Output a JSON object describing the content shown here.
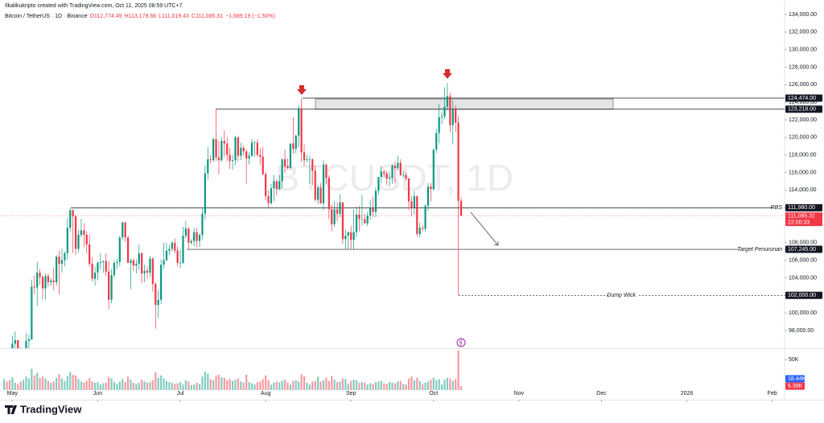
{
  "chart_data": {
    "type": "candlestick",
    "credit": "Ilkalikukripto created with TradingView.com, Oct 11, 2025 08:59 UTC+7",
    "legend": {
      "symbol": "Bitcoin / TetherUS · 1D · Binance",
      "open": "O112,774.49",
      "high": "H113,178.66",
      "low": "L111,019.43",
      "close": "C111,085.31",
      "change": "−1,689.19 (−1.50%)"
    },
    "watermark": "BTCUSDT, 1D",
    "brand": "TradingView",
    "up_color": "#089981",
    "down_color": "#f23645",
    "xlim": [
      -1.5,
      283.5
    ],
    "xticks": [
      {
        "value": 3,
        "label": "May"
      },
      {
        "value": 34,
        "label": "Jun"
      },
      {
        "value": 64,
        "label": "Jul"
      },
      {
        "value": 95,
        "label": "Aug"
      },
      {
        "value": 126,
        "label": "Sep"
      },
      {
        "value": 156,
        "label": "Oct"
      },
      {
        "value": 187,
        "label": "Nov"
      },
      {
        "value": 217,
        "label": "Dec"
      },
      {
        "value": 248,
        "label": "2026"
      },
      {
        "value": 279,
        "label": "Feb"
      }
    ],
    "ylim": [
      95980,
      134920
    ],
    "yticks": [
      {
        "value": 98000,
        "label": "98,000.00"
      },
      {
        "value": 100000,
        "label": "100,000.00"
      },
      {
        "value": 102000,
        "label": "102,000.00"
      },
      {
        "value": 104000,
        "label": "104,000.00"
      },
      {
        "value": 106000,
        "label": "106,000.00"
      },
      {
        "value": 108000,
        "label": "108,000.00"
      },
      {
        "value": 114000,
        "label": "114,000.00"
      },
      {
        "value": 116000,
        "label": "116,000.00"
      },
      {
        "value": 118000,
        "label": "118,000.00"
      },
      {
        "value": 120000,
        "label": "120,000.00"
      },
      {
        "value": 122000,
        "label": "122,000.00"
      },
      {
        "value": 124000,
        "label": "124,000.00"
      },
      {
        "value": 126000,
        "label": "126,000.00"
      },
      {
        "value": 128000,
        "label": "128,000.00"
      },
      {
        "value": 130000,
        "label": "130,000.00"
      },
      {
        "value": 132000,
        "label": "132,000.00"
      },
      {
        "value": 134000,
        "label": "134,000.00"
      }
    ],
    "levels": [
      {
        "value": 124474,
        "label": "124,474.00"
      },
      {
        "value": 123218,
        "label": "123,218.00"
      },
      {
        "value": 111980,
        "label": "111,980.00",
        "text": "RBS"
      },
      {
        "value": 107245,
        "label": "107,245.00",
        "text": "Target Penurunan"
      },
      {
        "value": 102000,
        "label": "102,000.00",
        "text": "Dump Wick"
      }
    ],
    "last_price": {
      "value": 111085.31,
      "label": "111,085.31",
      "countdown": "22:00:33"
    },
    "ohlc": [
      [
        94700,
        95600,
        93800,
        95000
      ],
      [
        95000,
        95500,
        93900,
        94300
      ],
      [
        94300,
        95200,
        93400,
        94200
      ],
      [
        94200,
        97400,
        93900,
        96500
      ],
      [
        96500,
        97900,
        96000,
        96900
      ],
      [
        96900,
        96900,
        95700,
        95900
      ],
      [
        95900,
        96100,
        93600,
        94300
      ],
      [
        94300,
        95200,
        93400,
        94700
      ],
      [
        94700,
        97700,
        94500,
        96800
      ],
      [
        96800,
        97500,
        95900,
        97000
      ],
      [
        97000,
        103800,
        96900,
        103000
      ],
      [
        103000,
        104300,
        102100,
        102900
      ],
      [
        102900,
        105800,
        100800,
        104600
      ],
      [
        104600,
        105000,
        103200,
        104100
      ],
      [
        104100,
        104300,
        101500,
        102800
      ],
      [
        102800,
        104500,
        101500,
        104200
      ],
      [
        104200,
        104500,
        103000,
        103500
      ],
      [
        103500,
        104000,
        103100,
        103700
      ],
      [
        103700,
        105100,
        102600,
        103500
      ],
      [
        103500,
        106600,
        103100,
        106400
      ],
      [
        106400,
        107100,
        102100,
        105600
      ],
      [
        105600,
        107300,
        104600,
        106000
      ],
      [
        106000,
        107000,
        105300,
        106800
      ],
      [
        106800,
        110800,
        106100,
        109700
      ],
      [
        109700,
        111900,
        109300,
        111700
      ],
      [
        111700,
        111800,
        106800,
        111000
      ],
      [
        111000,
        111200,
        106600,
        107300
      ],
      [
        107300,
        109500,
        106900,
        108900
      ],
      [
        108900,
        110700,
        108600,
        109400
      ],
      [
        109400,
        110200,
        107500,
        108900
      ],
      [
        108900,
        109300,
        106800,
        107800
      ],
      [
        107800,
        108900,
        105300,
        105600
      ],
      [
        105600,
        106300,
        103600,
        103900
      ],
      [
        103900,
        105300,
        103100,
        104600
      ],
      [
        104600,
        105900,
        103700,
        105700
      ],
      [
        105700,
        106800,
        104900,
        105800
      ],
      [
        105800,
        106000,
        104600,
        105900
      ],
      [
        105900,
        106800,
        104200,
        104700
      ],
      [
        104700,
        105900,
        100400,
        101500
      ],
      [
        101500,
        105000,
        101100,
        104300
      ],
      [
        104300,
        106000,
        104000,
        105700
      ],
      [
        105700,
        106200,
        105000,
        105800
      ],
      [
        105800,
        108800,
        105300,
        108600
      ],
      [
        108600,
        110400,
        108300,
        110300
      ],
      [
        110300,
        110400,
        108100,
        108600
      ],
      [
        108600,
        108800,
        105700,
        105700
      ],
      [
        105700,
        106200,
        102700,
        106000
      ],
      [
        106000,
        106200,
        104800,
        105400
      ],
      [
        105400,
        106100,
        104500,
        105600
      ],
      [
        105600,
        107800,
        104900,
        106800
      ],
      [
        106800,
        106900,
        103400,
        104500
      ],
      [
        104500,
        105500,
        103500,
        104800
      ],
      [
        104800,
        105300,
        103900,
        104600
      ],
      [
        104600,
        106500,
        104100,
        106200
      ],
      [
        106200,
        106300,
        102400,
        103300
      ],
      [
        103300,
        103500,
        98200,
        100900
      ],
      [
        100900,
        102600,
        99400,
        101500
      ],
      [
        101500,
        106100,
        101000,
        105500
      ],
      [
        105500,
        108000,
        105000,
        106000
      ],
      [
        106000,
        108000,
        105900,
        107100
      ],
      [
        107100,
        107800,
        106600,
        107300
      ],
      [
        107300,
        108200,
        107000,
        108000
      ],
      [
        108000,
        108500,
        106800,
        107100
      ],
      [
        107100,
        107600,
        105300,
        105700
      ],
      [
        105700,
        107200,
        105100,
        105700
      ],
      [
        105700,
        109800,
        105600,
        108800
      ],
      [
        108800,
        110500,
        108500,
        109600
      ],
      [
        109600,
        109800,
        107300,
        108000
      ],
      [
        108000,
        108400,
        107800,
        108200
      ],
      [
        108200,
        109700,
        107600,
        109200
      ],
      [
        109200,
        109700,
        107500,
        108200
      ],
      [
        108200,
        109000,
        107500,
        108900
      ],
      [
        108900,
        111900,
        108300,
        111300
      ],
      [
        111300,
        116800,
        110600,
        115900
      ],
      [
        115900,
        118900,
        115200,
        117500
      ],
      [
        117500,
        118000,
        117000,
        117400
      ],
      [
        117400,
        120000,
        117200,
        119800
      ],
      [
        119800,
        123218,
        117300,
        117700
      ],
      [
        117700,
        119600,
        115800,
        117400
      ],
      [
        117400,
        120000,
        117200,
        119600
      ],
      [
        119600,
        120800,
        117800,
        119300
      ],
      [
        119300,
        120000,
        117300,
        118000
      ],
      [
        118000,
        118800,
        116400,
        117300
      ],
      [
        117300,
        118000,
        116300,
        117400
      ],
      [
        117400,
        120200,
        116800,
        120000
      ],
      [
        120000,
        120100,
        117300,
        117900
      ],
      [
        117900,
        119400,
        117400,
        118800
      ],
      [
        118800,
        119100,
        117900,
        118400
      ],
      [
        118400,
        118600,
        114700,
        117600
      ],
      [
        117600,
        118300,
        116900,
        117900
      ],
      [
        117900,
        119800,
        117800,
        119400
      ],
      [
        119400,
        119600,
        117800,
        119400
      ],
      [
        119400,
        119800,
        117800,
        118000
      ],
      [
        118000,
        118800,
        116900,
        117800
      ],
      [
        117800,
        118900,
        115700,
        115800
      ],
      [
        115800,
        116100,
        112800,
        113300
      ],
      [
        113300,
        114000,
        112000,
        112500
      ],
      [
        112500,
        114700,
        112300,
        114200
      ],
      [
        114200,
        115700,
        112700,
        115000
      ],
      [
        115000,
        115200,
        113400,
        114100
      ],
      [
        114100,
        115700,
        114000,
        115000
      ],
      [
        115000,
        117600,
        114200,
        117500
      ],
      [
        117500,
        118600,
        115900,
        116700
      ],
      [
        116700,
        117600,
        116300,
        116500
      ],
      [
        116500,
        119300,
        116300,
        119300
      ],
      [
        119300,
        122300,
        118100,
        118700
      ],
      [
        118700,
        120300,
        118200,
        120200
      ],
      [
        120200,
        123700,
        118900,
        123300
      ],
      [
        123300,
        124474,
        117200,
        118300
      ],
      [
        118300,
        119200,
        116800,
        117400
      ],
      [
        117400,
        118000,
        117200,
        117500
      ],
      [
        117500,
        117900,
        114700,
        117500
      ],
      [
        117500,
        117600,
        114600,
        116200
      ],
      [
        116200,
        116800,
        112700,
        112900
      ],
      [
        112900,
        114600,
        112400,
        114300
      ],
      [
        114300,
        114800,
        112400,
        112500
      ],
      [
        112500,
        117400,
        111700,
        116900
      ],
      [
        116900,
        117000,
        114700,
        115400
      ],
      [
        115400,
        115700,
        110700,
        111800
      ],
      [
        111800,
        112400,
        109300,
        110100
      ],
      [
        110100,
        112700,
        109800,
        111800
      ],
      [
        111800,
        112600,
        110400,
        111300
      ],
      [
        111300,
        113500,
        110900,
        112600
      ],
      [
        112600,
        112600,
        107900,
        108400
      ],
      [
        108400,
        109500,
        107300,
        108800
      ],
      [
        108800,
        109300,
        107300,
        109200
      ],
      [
        109200,
        109900,
        107300,
        108300
      ],
      [
        108300,
        111800,
        107300,
        109200
      ],
      [
        109200,
        112100,
        108600,
        111200
      ],
      [
        111200,
        112200,
        109300,
        110700
      ],
      [
        110700,
        113400,
        110000,
        110700
      ],
      [
        110700,
        111300,
        110200,
        110200
      ],
      [
        110200,
        111500,
        109900,
        111100
      ],
      [
        111100,
        112900,
        110600,
        112000
      ],
      [
        112000,
        113300,
        110900,
        111500
      ],
      [
        111500,
        114300,
        110900,
        113900
      ],
      [
        113900,
        115500,
        113500,
        115500
      ],
      [
        115500,
        116700,
        114800,
        116100
      ],
      [
        116100,
        116300,
        115500,
        115900
      ],
      [
        115900,
        116200,
        114600,
        115300
      ],
      [
        115300,
        116100,
        114400,
        115400
      ],
      [
        115400,
        117000,
        114700,
        116800
      ],
      [
        116800,
        117300,
        114800,
        116500
      ],
      [
        116500,
        117900,
        116200,
        117100
      ],
      [
        117100,
        117500,
        115600,
        115700
      ],
      [
        115700,
        116200,
        115400,
        115700
      ],
      [
        115700,
        116000,
        115100,
        115300
      ],
      [
        115300,
        115400,
        111700,
        112700
      ],
      [
        112700,
        113300,
        111000,
        112000
      ],
      [
        112000,
        113900,
        111200,
        113300
      ],
      [
        113300,
        113400,
        108700,
        109000
      ],
      [
        109000,
        110300,
        108600,
        109700
      ],
      [
        109700,
        110000,
        109300,
        109600
      ],
      [
        109600,
        112400,
        109300,
        112200
      ],
      [
        112200,
        114800,
        111600,
        114400
      ],
      [
        114400,
        114800,
        112700,
        114100
      ],
      [
        114100,
        118700,
        113900,
        118600
      ],
      [
        118600,
        121000,
        118200,
        120500
      ],
      [
        120500,
        123800,
        119300,
        122300
      ],
      [
        122300,
        122900,
        121500,
        122400
      ],
      [
        122400,
        125700,
        122100,
        123500
      ],
      [
        123500,
        126200,
        123100,
        124700
      ],
      [
        124700,
        125100,
        120600,
        121400
      ],
      [
        121400,
        124200,
        119200,
        123300
      ],
      [
        123300,
        123700,
        120600,
        121700
      ],
      [
        121700,
        122500,
        102000,
        112774
      ],
      [
        112774.49,
        113178.66,
        111019.43,
        111085.31
      ]
    ],
    "volume": [
      18,
      14,
      16,
      21,
      12,
      10,
      14,
      17,
      22,
      19,
      35,
      24,
      28,
      20,
      22,
      19,
      15,
      12,
      14,
      20,
      26,
      19,
      15,
      23,
      30,
      25,
      24,
      18,
      14,
      12,
      15,
      20,
      14,
      12,
      13,
      9,
      11,
      12,
      21,
      19,
      13,
      10,
      14,
      18,
      13,
      22,
      17,
      12,
      10,
      12,
      17,
      14,
      12,
      13,
      16,
      29,
      20,
      24,
      19,
      15,
      13,
      12,
      10,
      11,
      13,
      9,
      16,
      14,
      8,
      9,
      12,
      10,
      22,
      30,
      27,
      18,
      16,
      24,
      25,
      21,
      20,
      16,
      18,
      15,
      17,
      19,
      14,
      12,
      25,
      13,
      11,
      9,
      13,
      14,
      18,
      24,
      16,
      9,
      12,
      14,
      13,
      15,
      17,
      12,
      9,
      15,
      16,
      14,
      26,
      23,
      12,
      9,
      14,
      15,
      22,
      14,
      16,
      20,
      15,
      23,
      17,
      13,
      14,
      19,
      18,
      10,
      15,
      17,
      16,
      12,
      13,
      12,
      9,
      11,
      10,
      13,
      14,
      15,
      11,
      10,
      13,
      12,
      11,
      14,
      15,
      10,
      9,
      19,
      22,
      16,
      20,
      15,
      10,
      12,
      14,
      17,
      20,
      16,
      18,
      9,
      17,
      20,
      19,
      15,
      18,
      65,
      6.39
    ],
    "volume_label": "6.39K",
    "volume_ma": {
      "value": 18.44,
      "label": "18.44K"
    },
    "vlim": [
      0,
      66
    ],
    "vticks": [
      {
        "value": 50,
        "label": "50K"
      }
    ]
  }
}
